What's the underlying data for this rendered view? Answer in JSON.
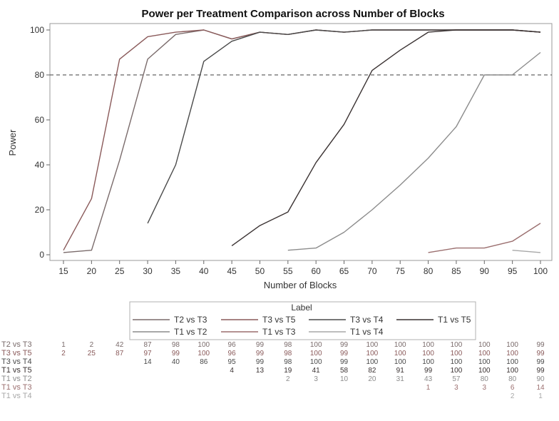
{
  "chart_data": {
    "type": "line",
    "title": "Power per Treatment Comparison across Number of Blocks",
    "xlabel": "Number of Blocks",
    "ylabel": "Power",
    "x": [
      15,
      20,
      25,
      30,
      35,
      40,
      45,
      50,
      55,
      60,
      65,
      70,
      75,
      80,
      85,
      90,
      95,
      100
    ],
    "xlim": [
      15,
      100
    ],
    "ylim": [
      0,
      100
    ],
    "yticks": [
      0,
      20,
      40,
      60,
      80,
      100
    ],
    "reference_line": {
      "y": 80,
      "style": "dashed"
    },
    "legend": {
      "title": "Label",
      "position": "bottom"
    },
    "series": [
      {
        "name": "T2 vs T3",
        "color": "#7a6b6b",
        "values": [
          1,
          2,
          42,
          87,
          98,
          100,
          96,
          99,
          98,
          100,
          99,
          100,
          100,
          100,
          100,
          100,
          100,
          99
        ]
      },
      {
        "name": "T3 vs T5",
        "color": "#8a5a5a",
        "values": [
          2,
          25,
          87,
          97,
          99,
          100,
          96,
          99,
          98,
          100,
          99,
          100,
          100,
          100,
          100,
          100,
          100,
          99
        ]
      },
      {
        "name": "T3 vs T4",
        "color": "#4a4a4a",
        "values": [
          null,
          null,
          null,
          14,
          40,
          86,
          95,
          99,
          98,
          100,
          99,
          100,
          100,
          100,
          100,
          100,
          100,
          99
        ]
      },
      {
        "name": "T1 vs T5",
        "color": "#3a3232",
        "values": [
          null,
          null,
          null,
          null,
          null,
          null,
          4,
          13,
          19,
          41,
          58,
          82,
          91,
          99,
          100,
          100,
          100,
          99
        ]
      },
      {
        "name": "T1 vs T2",
        "color": "#8c8c8c",
        "values": [
          null,
          null,
          null,
          null,
          null,
          null,
          null,
          null,
          2,
          3,
          10,
          20,
          31,
          43,
          57,
          80,
          80,
          90
        ]
      },
      {
        "name": "T1 vs T3",
        "color": "#9b6f6f",
        "values": [
          null,
          null,
          null,
          null,
          null,
          null,
          null,
          null,
          null,
          null,
          null,
          null,
          null,
          1,
          3,
          3,
          6,
          14
        ]
      },
      {
        "name": "T1 vs T4",
        "color": "#a8a8a8",
        "values": [
          null,
          null,
          null,
          null,
          null,
          null,
          null,
          null,
          null,
          null,
          null,
          null,
          null,
          null,
          null,
          null,
          2,
          1
        ]
      }
    ]
  }
}
